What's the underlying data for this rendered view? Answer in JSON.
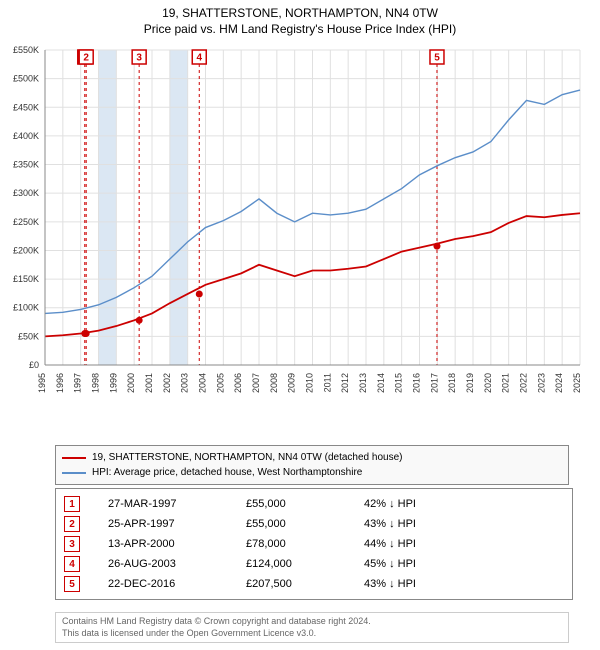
{
  "title_line1": "19, SHATTERSTONE, NORTHAMPTON, NN4 0TW",
  "title_line2": "Price paid vs. HM Land Registry's House Price Index (HPI)",
  "chart": {
    "type": "line",
    "background_color": "#ffffff",
    "grid_color": "#e0e0e0",
    "axis_color": "#888888",
    "text_color": "#333333",
    "axis_fontsize": 9,
    "ylim": [
      0,
      550000
    ],
    "ytick_step": 50000,
    "yticks": [
      "£0",
      "£50K",
      "£100K",
      "£150K",
      "£200K",
      "£250K",
      "£300K",
      "£350K",
      "£400K",
      "£450K",
      "£500K",
      "£550K"
    ],
    "xlim": [
      1995,
      2025
    ],
    "xticks": [
      1995,
      1996,
      1997,
      1998,
      1999,
      2000,
      2001,
      2002,
      2003,
      2004,
      2005,
      2006,
      2007,
      2008,
      2009,
      2010,
      2011,
      2012,
      2013,
      2014,
      2015,
      2016,
      2017,
      2018,
      2019,
      2020,
      2021,
      2022,
      2023,
      2024,
      2025
    ],
    "band_years": [
      1998,
      2002
    ],
    "band_color": "#dbe7f3",
    "marker_vline_color": "#cc0000",
    "marker_vline_dash": "3,3",
    "marker_box_border": "#cc0000",
    "marker_box_text": "#cc0000",
    "series": [
      {
        "name": "property",
        "label": "19, SHATTERSTONE, NORTHAMPTON, NN4 0TW (detached house)",
        "color": "#cc0000",
        "width": 1.8,
        "points": [
          [
            1995,
            50000
          ],
          [
            1996,
            52000
          ],
          [
            1997,
            55000
          ],
          [
            1998,
            60000
          ],
          [
            1999,
            68000
          ],
          [
            2000,
            78000
          ],
          [
            2001,
            90000
          ],
          [
            2002,
            108000
          ],
          [
            2003,
            124000
          ],
          [
            2004,
            140000
          ],
          [
            2005,
            150000
          ],
          [
            2006,
            160000
          ],
          [
            2007,
            175000
          ],
          [
            2008,
            165000
          ],
          [
            2009,
            155000
          ],
          [
            2010,
            165000
          ],
          [
            2011,
            165000
          ],
          [
            2012,
            168000
          ],
          [
            2013,
            172000
          ],
          [
            2014,
            185000
          ],
          [
            2015,
            198000
          ],
          [
            2016,
            205000
          ],
          [
            2017,
            212000
          ],
          [
            2018,
            220000
          ],
          [
            2019,
            225000
          ],
          [
            2020,
            232000
          ],
          [
            2021,
            248000
          ],
          [
            2022,
            260000
          ],
          [
            2023,
            258000
          ],
          [
            2024,
            262000
          ],
          [
            2025,
            265000
          ]
        ]
      },
      {
        "name": "hpi",
        "label": "HPI: Average price, detached house, West Northamptonshire",
        "color": "#5b8ec9",
        "width": 1.4,
        "points": [
          [
            1995,
            90000
          ],
          [
            1996,
            92000
          ],
          [
            1997,
            97000
          ],
          [
            1998,
            105000
          ],
          [
            1999,
            118000
          ],
          [
            2000,
            135000
          ],
          [
            2001,
            155000
          ],
          [
            2002,
            185000
          ],
          [
            2003,
            215000
          ],
          [
            2004,
            240000
          ],
          [
            2005,
            252000
          ],
          [
            2006,
            268000
          ],
          [
            2007,
            290000
          ],
          [
            2008,
            265000
          ],
          [
            2009,
            250000
          ],
          [
            2010,
            265000
          ],
          [
            2011,
            262000
          ],
          [
            2012,
            265000
          ],
          [
            2013,
            272000
          ],
          [
            2014,
            290000
          ],
          [
            2015,
            308000
          ],
          [
            2016,
            332000
          ],
          [
            2017,
            348000
          ],
          [
            2018,
            362000
          ],
          [
            2019,
            372000
          ],
          [
            2020,
            390000
          ],
          [
            2021,
            428000
          ],
          [
            2022,
            462000
          ],
          [
            2023,
            455000
          ],
          [
            2024,
            472000
          ],
          [
            2025,
            480000
          ]
        ]
      }
    ],
    "sale_markers": [
      {
        "idx": 1,
        "x": 1997.23,
        "y": 55000
      },
      {
        "idx": 2,
        "x": 1997.31,
        "y": 55000
      },
      {
        "idx": 3,
        "x": 2000.28,
        "y": 78000
      },
      {
        "idx": 4,
        "x": 2003.65,
        "y": 124000
      },
      {
        "idx": 5,
        "x": 2016.98,
        "y": 207500
      }
    ],
    "marker_radius": 3.5
  },
  "sales": [
    {
      "idx": "1",
      "date": "27-MAR-1997",
      "price": "£55,000",
      "delta": "42% ↓ HPI"
    },
    {
      "idx": "2",
      "date": "25-APR-1997",
      "price": "£55,000",
      "delta": "43% ↓ HPI"
    },
    {
      "idx": "3",
      "date": "13-APR-2000",
      "price": "£78,000",
      "delta": "44% ↓ HPI"
    },
    {
      "idx": "4",
      "date": "26-AUG-2003",
      "price": "£124,000",
      "delta": "45% ↓ HPI"
    },
    {
      "idx": "5",
      "date": "22-DEC-2016",
      "price": "£207,500",
      "delta": "43% ↓ HPI"
    }
  ],
  "footer_line1": "Contains HM Land Registry data © Crown copyright and database right 2024.",
  "footer_line2": "This data is licensed under the Open Government Licence v3.0."
}
